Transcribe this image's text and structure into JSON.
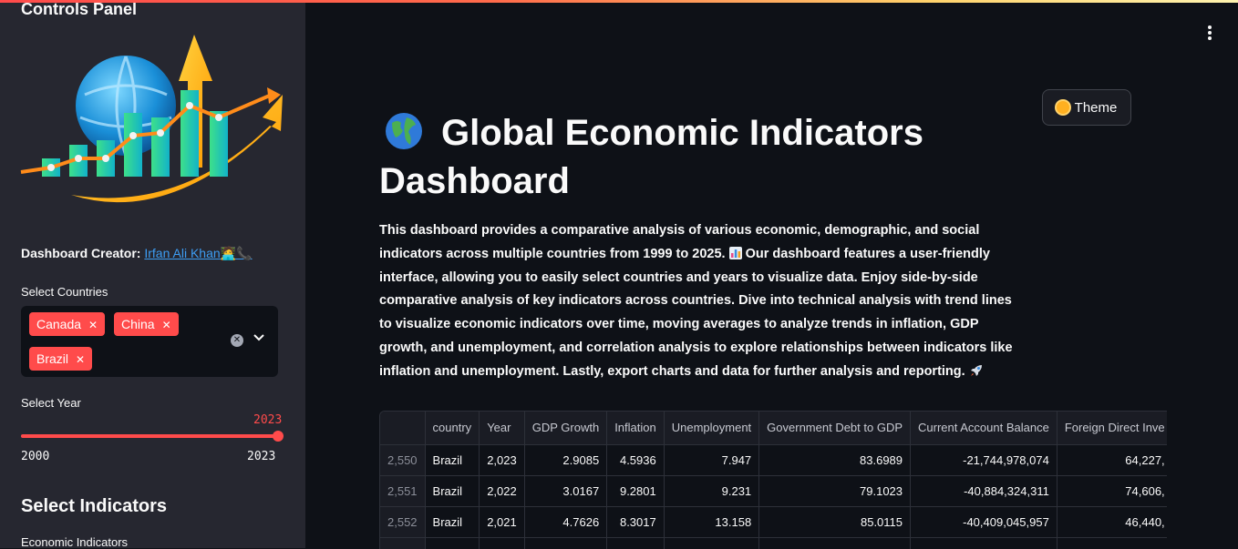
{
  "sidebar": {
    "title": "Controls Panel",
    "creator_label": "Dashboard Creator:",
    "creator_name": "Irfan Ali Khan",
    "creator_emoji": "🧑‍💻📞",
    "countries_label": "Select Countries",
    "selected_countries": [
      "Canada",
      "China",
      "Brazil"
    ],
    "year_label": "Select Year",
    "year_value": "2023",
    "year_min": "2000",
    "year_max": "2023",
    "indicators_heading": "Select Indicators",
    "economic_label": "Economic Indicators"
  },
  "theme_button": {
    "label": "Theme",
    "icon": "sun-icon"
  },
  "main": {
    "title": "Global Economic Indicators Dashboard",
    "description": "This dashboard provides a comparative analysis of various economic, demographic, and social indicators across multiple countries from 1999 to 2025.",
    "description_2": " Our dashboard features a user-friendly interface, allowing you to easily select countries and years to visualize data. Enjoy side-by-side comparative analysis of key indicators across countries. Dive into technical analysis with trend lines to visualize economic indicators over time, moving averages to analyze trends in inflation, GDP growth, and unemployment, and correlation analysis to explore relationships between indicators like inflation and unemployment. Lastly, export charts and data for further analysis and reporting."
  },
  "table": {
    "columns": [
      "",
      "country",
      "Year",
      "GDP Growth",
      "Inflation",
      "Unemployment",
      "Government Debt to GDP",
      "Current Account Balance",
      "Foreign Direct Inve"
    ],
    "rows": [
      [
        "2,550",
        "Brazil",
        "2,023",
        "2.9085",
        "4.5936",
        "7.947",
        "83.6989",
        "-21,744,978,074",
        "64,227,"
      ],
      [
        "2,551",
        "Brazil",
        "2,022",
        "3.0167",
        "9.2801",
        "9.231",
        "79.1023",
        "-40,884,324,311",
        "74,606,"
      ],
      [
        "2,552",
        "Brazil",
        "2,021",
        "4.7626",
        "8.3017",
        "13.158",
        "85.0115",
        "-40,409,045,957",
        "46,440,"
      ]
    ]
  },
  "colors": {
    "accent": "#ff4b4b",
    "background": "#0e1117",
    "sidebar": "#262730",
    "link": "#3d9df3"
  }
}
